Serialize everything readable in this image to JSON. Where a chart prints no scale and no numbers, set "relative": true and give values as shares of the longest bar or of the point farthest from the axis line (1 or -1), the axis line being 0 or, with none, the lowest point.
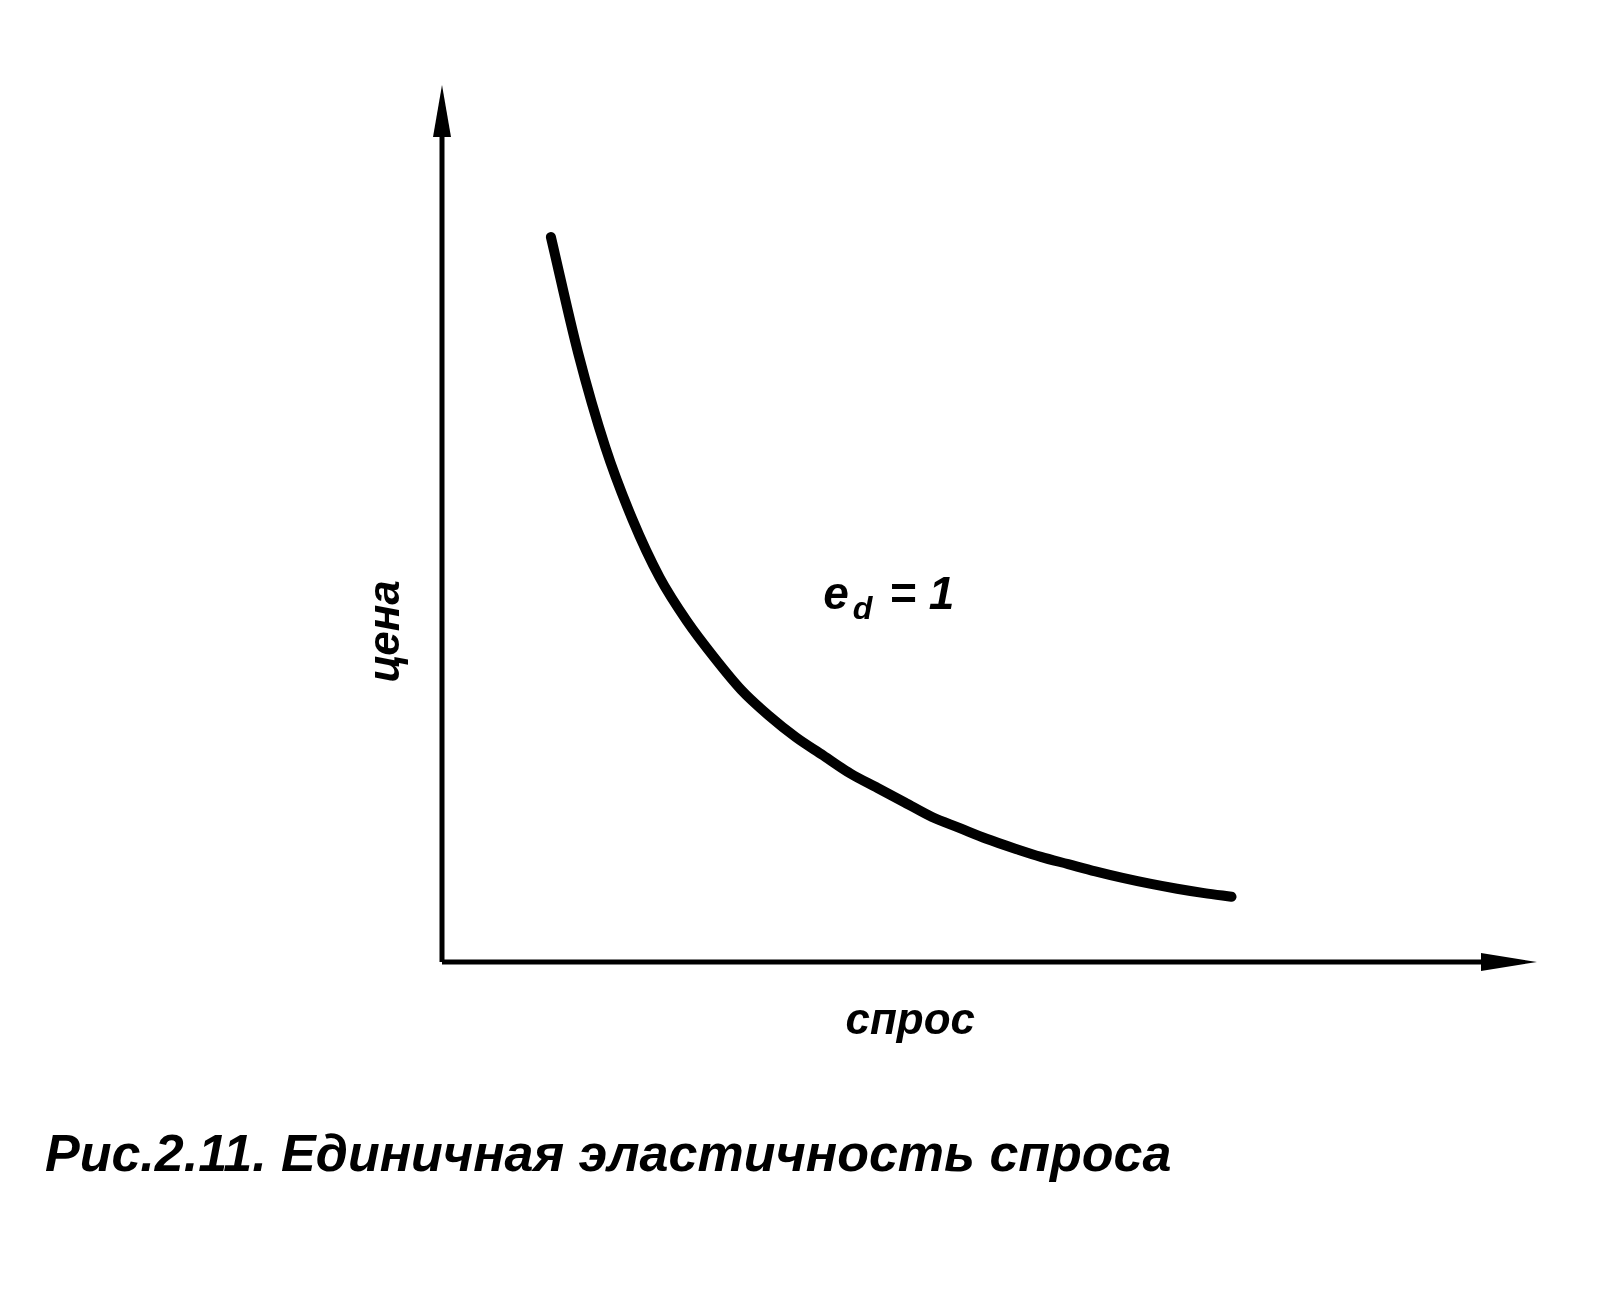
{
  "chart_data": {
    "type": "line",
    "relative": true,
    "title": "Рис.2.11. Единичная эластичность спроса",
    "xlabel": "спрос",
    "ylabel": "цена",
    "annotations": [
      "e$_{d}$ = 1"
    ],
    "legend": false,
    "marker": "none",
    "line_style": "solid",
    "categories": [
      null,
      null,
      null,
      null,
      null,
      null,
      null,
      null,
      null,
      null,
      null,
      null,
      null,
      null,
      null,
      null,
      null,
      null,
      null,
      null,
      null,
      null,
      null,
      null,
      null,
      null,
      null,
      null,
      null,
      null,
      null,
      null,
      null,
      null,
      null,
      null,
      null,
      null,
      null,
      null,
      null
    ],
    "series": [
      {
        "color": "#000000",
        "values": [
          null,
          null,
          null,
          null,
          1,
          0.84,
          0.71,
          0.61,
          0.53,
          0.47,
          0.42,
          0.375,
          0.34,
          0.31,
          0.285,
          0.26,
          0.24,
          0.22,
          0.2,
          0.185,
          0.17,
          0.157,
          0.145,
          0.135,
          0.125,
          0.116,
          0.108,
          0.101,
          0.095,
          0.09,
          null,
          null,
          null,
          null,
          null,
          null,
          null,
          null,
          null,
          null,
          null
        ]
      }
    ]
  }
}
